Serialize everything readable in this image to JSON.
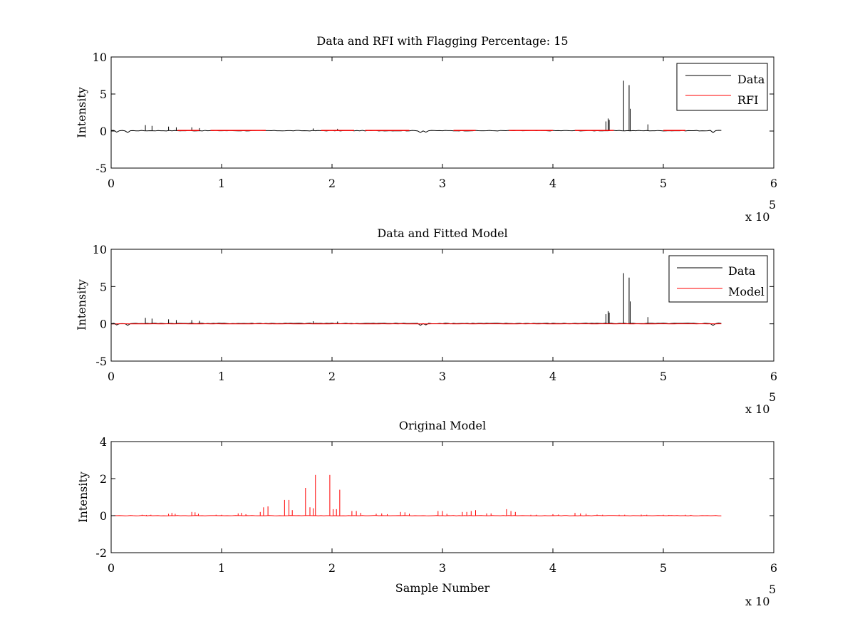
{
  "colors": {
    "data": "#000000",
    "rfi": "#ff0000",
    "model": "#ff0000",
    "background": "#ffffff"
  },
  "chart_data": [
    {
      "id": "panel1",
      "type": "line",
      "title": "Data and RFI with Flagging Percentage: 15",
      "xlabel": "",
      "ylabel": "Intensity",
      "xlim": [
        0,
        600000
      ],
      "ylim": [
        -5,
        10
      ],
      "xticks": [
        0,
        1,
        2,
        3,
        4,
        5,
        6
      ],
      "yticks": [
        10,
        5,
        0,
        -5
      ],
      "x_multiplier": {
        "base": "x 10",
        "exp": "5"
      },
      "grid": false,
      "legend_position": "top-right",
      "legend": [
        {
          "label": "Data",
          "color": "#000000"
        },
        {
          "label": "RFI",
          "color": "#ff0000"
        }
      ],
      "data_range": [
        0,
        553000
      ],
      "series": [
        {
          "name": "Data",
          "color": "#000000",
          "baseline": 0.05,
          "dips": [
            [
              5000,
              -0.15
            ],
            [
              15000,
              -0.2
            ],
            [
              280000,
              -0.2
            ],
            [
              285000,
              -0.15
            ],
            [
              545000,
              -0.2
            ],
            [
              550000,
              0.1
            ]
          ],
          "spikes": [
            [
              31000,
              0.8
            ],
            [
              37000,
              0.7
            ],
            [
              52000,
              0.6
            ],
            [
              59000,
              0.5
            ],
            [
              73000,
              0.5
            ],
            [
              80000,
              0.4
            ],
            [
              183000,
              0.35
            ],
            [
              205000,
              0.3
            ],
            [
              448000,
              1.3
            ],
            [
              450000,
              1.7
            ],
            [
              451000,
              1.5
            ],
            [
              464000,
              6.8
            ],
            [
              469000,
              6.2
            ],
            [
              470000,
              3.0
            ],
            [
              486000,
              0.9
            ]
          ]
        },
        {
          "name": "RFI",
          "color": "#ff0000",
          "segments": [
            [
              60000,
              80000
            ],
            [
              90000,
              140000
            ],
            [
              190000,
              220000
            ],
            [
              230000,
              270000
            ],
            [
              310000,
              330000
            ],
            [
              360000,
              400000
            ],
            [
              420000,
              440000
            ],
            [
              440000,
              455000
            ],
            [
              500000,
              520000
            ]
          ]
        }
      ]
    },
    {
      "id": "panel2",
      "type": "line",
      "title": "Data and Fitted Model",
      "xlabel": "",
      "ylabel": "Intensity",
      "xlim": [
        0,
        600000
      ],
      "ylim": [
        -5,
        10
      ],
      "xticks": [
        0,
        1,
        2,
        3,
        4,
        5,
        6
      ],
      "yticks": [
        10,
        5,
        0,
        -5
      ],
      "x_multiplier": {
        "base": "x 10",
        "exp": "5"
      },
      "grid": false,
      "legend_position": "top-right",
      "legend": [
        {
          "label": "Data",
          "color": "#000000"
        },
        {
          "label": "Model",
          "color": "#ff0000"
        }
      ],
      "data_range": [
        0,
        553000
      ],
      "series": [
        {
          "name": "Data",
          "color": "#000000",
          "baseline": 0.05,
          "dips": [
            [
              5000,
              -0.15
            ],
            [
              15000,
              -0.2
            ],
            [
              280000,
              -0.2
            ],
            [
              285000,
              -0.15
            ],
            [
              545000,
              -0.2
            ],
            [
              550000,
              0.1
            ]
          ],
          "spikes": [
            [
              31000,
              0.8
            ],
            [
              37000,
              0.7
            ],
            [
              52000,
              0.6
            ],
            [
              59000,
              0.5
            ],
            [
              73000,
              0.5
            ],
            [
              80000,
              0.4
            ],
            [
              183000,
              0.35
            ],
            [
              205000,
              0.3
            ],
            [
              448000,
              1.3
            ],
            [
              450000,
              1.7
            ],
            [
              451000,
              1.5
            ],
            [
              464000,
              6.8
            ],
            [
              469000,
              6.2
            ],
            [
              470000,
              3.0
            ],
            [
              486000,
              0.9
            ]
          ]
        },
        {
          "name": "Model",
          "color": "#ff0000",
          "baseline": 0.0
        }
      ]
    },
    {
      "id": "panel3",
      "type": "line",
      "title": "Original Model",
      "xlabel": "Sample Number",
      "ylabel": "Intensity",
      "xlim": [
        0,
        600000
      ],
      "ylim": [
        -2,
        4
      ],
      "xticks": [
        0,
        1,
        2,
        3,
        4,
        5,
        6
      ],
      "yticks": [
        4,
        2,
        0,
        -2
      ],
      "x_multiplier": {
        "base": "x 10",
        "exp": "5"
      },
      "grid": false,
      "legend_position": "none",
      "legend": [],
      "data_range": [
        0,
        553000
      ],
      "series": [
        {
          "name": "Model",
          "color": "#ff0000",
          "baseline": 0.0,
          "spikes": [
            [
              28000,
              0.05
            ],
            [
              32000,
              0.04
            ],
            [
              36000,
              0.05
            ],
            [
              52000,
              0.1
            ],
            [
              55000,
              0.15
            ],
            [
              58000,
              0.1
            ],
            [
              73000,
              0.2
            ],
            [
              76000,
              0.18
            ],
            [
              79000,
              0.1
            ],
            [
              95000,
              0.05
            ],
            [
              100000,
              0.05
            ],
            [
              115000,
              0.12
            ],
            [
              118000,
              0.15
            ],
            [
              122000,
              0.08
            ],
            [
              135000,
              0.2
            ],
            [
              138000,
              0.45
            ],
            [
              142000,
              0.5
            ],
            [
              157000,
              0.85
            ],
            [
              161000,
              0.85
            ],
            [
              164000,
              0.3
            ],
            [
              176000,
              1.5
            ],
            [
              180000,
              0.45
            ],
            [
              183000,
              0.4
            ],
            [
              185000,
              2.2
            ],
            [
              198000,
              2.2
            ],
            [
              201000,
              0.35
            ],
            [
              204000,
              0.35
            ],
            [
              207000,
              1.4
            ],
            [
              218000,
              0.25
            ],
            [
              222000,
              0.25
            ],
            [
              226000,
              0.15
            ],
            [
              240000,
              0.1
            ],
            [
              245000,
              0.12
            ],
            [
              250000,
              0.08
            ],
            [
              262000,
              0.2
            ],
            [
              266000,
              0.18
            ],
            [
              270000,
              0.1
            ],
            [
              296000,
              0.25
            ],
            [
              300000,
              0.25
            ],
            [
              304000,
              0.1
            ],
            [
              318000,
              0.2
            ],
            [
              322000,
              0.2
            ],
            [
              326000,
              0.25
            ],
            [
              330000,
              0.3
            ],
            [
              340000,
              0.12
            ],
            [
              344000,
              0.12
            ],
            [
              358000,
              0.35
            ],
            [
              362000,
              0.25
            ],
            [
              366000,
              0.2
            ],
            [
              380000,
              0.05
            ],
            [
              385000,
              0.05
            ],
            [
              400000,
              0.08
            ],
            [
              405000,
              0.06
            ],
            [
              420000,
              0.15
            ],
            [
              425000,
              0.12
            ],
            [
              430000,
              0.1
            ],
            [
              440000,
              0.06
            ],
            [
              445000,
              0.05
            ],
            [
              460000,
              0.05
            ],
            [
              465000,
              0.05
            ],
            [
              480000,
              0.06
            ],
            [
              485000,
              0.05
            ],
            [
              500000,
              0.05
            ],
            [
              505000,
              0.04
            ],
            [
              520000,
              0.05
            ],
            [
              525000,
              0.04
            ]
          ]
        }
      ]
    }
  ]
}
